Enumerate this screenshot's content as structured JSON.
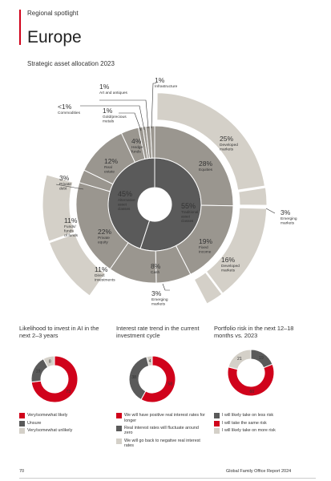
{
  "header": {
    "section": "Regional spotlight",
    "title": "Europe"
  },
  "colors": {
    "red": "#d0021b",
    "dark": "#5a5a5a",
    "mid": "#9a968f",
    "light": "#d4d0c8",
    "white": "#ffffff"
  },
  "allocation": {
    "title": "Strategic asset allocation 2023",
    "inner": [
      {
        "pct": "45%",
        "label": "Alternative asset classes",
        "value": 45
      },
      {
        "pct": "55%",
        "label": "Traditional asset classes",
        "value": 55
      }
    ],
    "outer_labels": [
      {
        "pct": "1%",
        "label": "Infrastructure"
      },
      {
        "pct": "1%",
        "label": "Art and antiques"
      },
      {
        "pct": "<1%",
        "label": "Commodities"
      },
      {
        "pct": "1%",
        "label": "Gold/precious metals"
      },
      {
        "pct": "4%",
        "label": "Hedge funds"
      },
      {
        "pct": "12%",
        "label": "Real estate"
      },
      {
        "pct": "3%",
        "label": "Private debt"
      },
      {
        "pct": "11%",
        "label": "Funds/ funds of funds"
      },
      {
        "pct": "22%",
        "label": "Private equity"
      },
      {
        "pct": "11%",
        "label": "Direct investments"
      },
      {
        "pct": "28%",
        "label": "Equities"
      },
      {
        "pct": "25%",
        "label": "Developed markets"
      },
      {
        "pct": "3%",
        "label": "Emerging markets"
      },
      {
        "pct": "19%",
        "label": "Fixed income"
      },
      {
        "pct": "16%",
        "label": "Developed markets"
      },
      {
        "pct": "3%",
        "label": "Emerging markets"
      },
      {
        "pct": "8%",
        "label": "Cash"
      }
    ]
  },
  "chart_data": [
    {
      "type": "pie",
      "title": "Likelihood to invest in AI in the next 2–3 years",
      "categories": [
        "Very/somewhat likely",
        "Unsure",
        "Very/somewhat unlikely"
      ],
      "values": [
        73,
        19,
        8
      ],
      "colors": [
        "#d0021b",
        "#5a5a5a",
        "#d4d0c8"
      ]
    },
    {
      "type": "pie",
      "title": "Interest rate trend in the current investment cycle",
      "categories": [
        "We will have positive real interest rates for longer",
        "Real interest rates will fluctuate around zero",
        "We will go back to negative real interest rates"
      ],
      "values": [
        58,
        38,
        4
      ],
      "colors": [
        "#d0021b",
        "#5a5a5a",
        "#d4d0c8"
      ]
    },
    {
      "type": "pie",
      "title": "Portfolio risk in the next 12–18 months vs. 2023",
      "categories": [
        "I will likely take on less risk",
        "I will take the same risk",
        "I will likely take on more risk"
      ],
      "values": [
        19,
        60,
        21
      ],
      "colors": [
        "#5a5a5a",
        "#d0021b",
        "#d4d0c8"
      ]
    }
  ],
  "footer": {
    "page": "70",
    "report": "Global Family Office Report 2024"
  }
}
